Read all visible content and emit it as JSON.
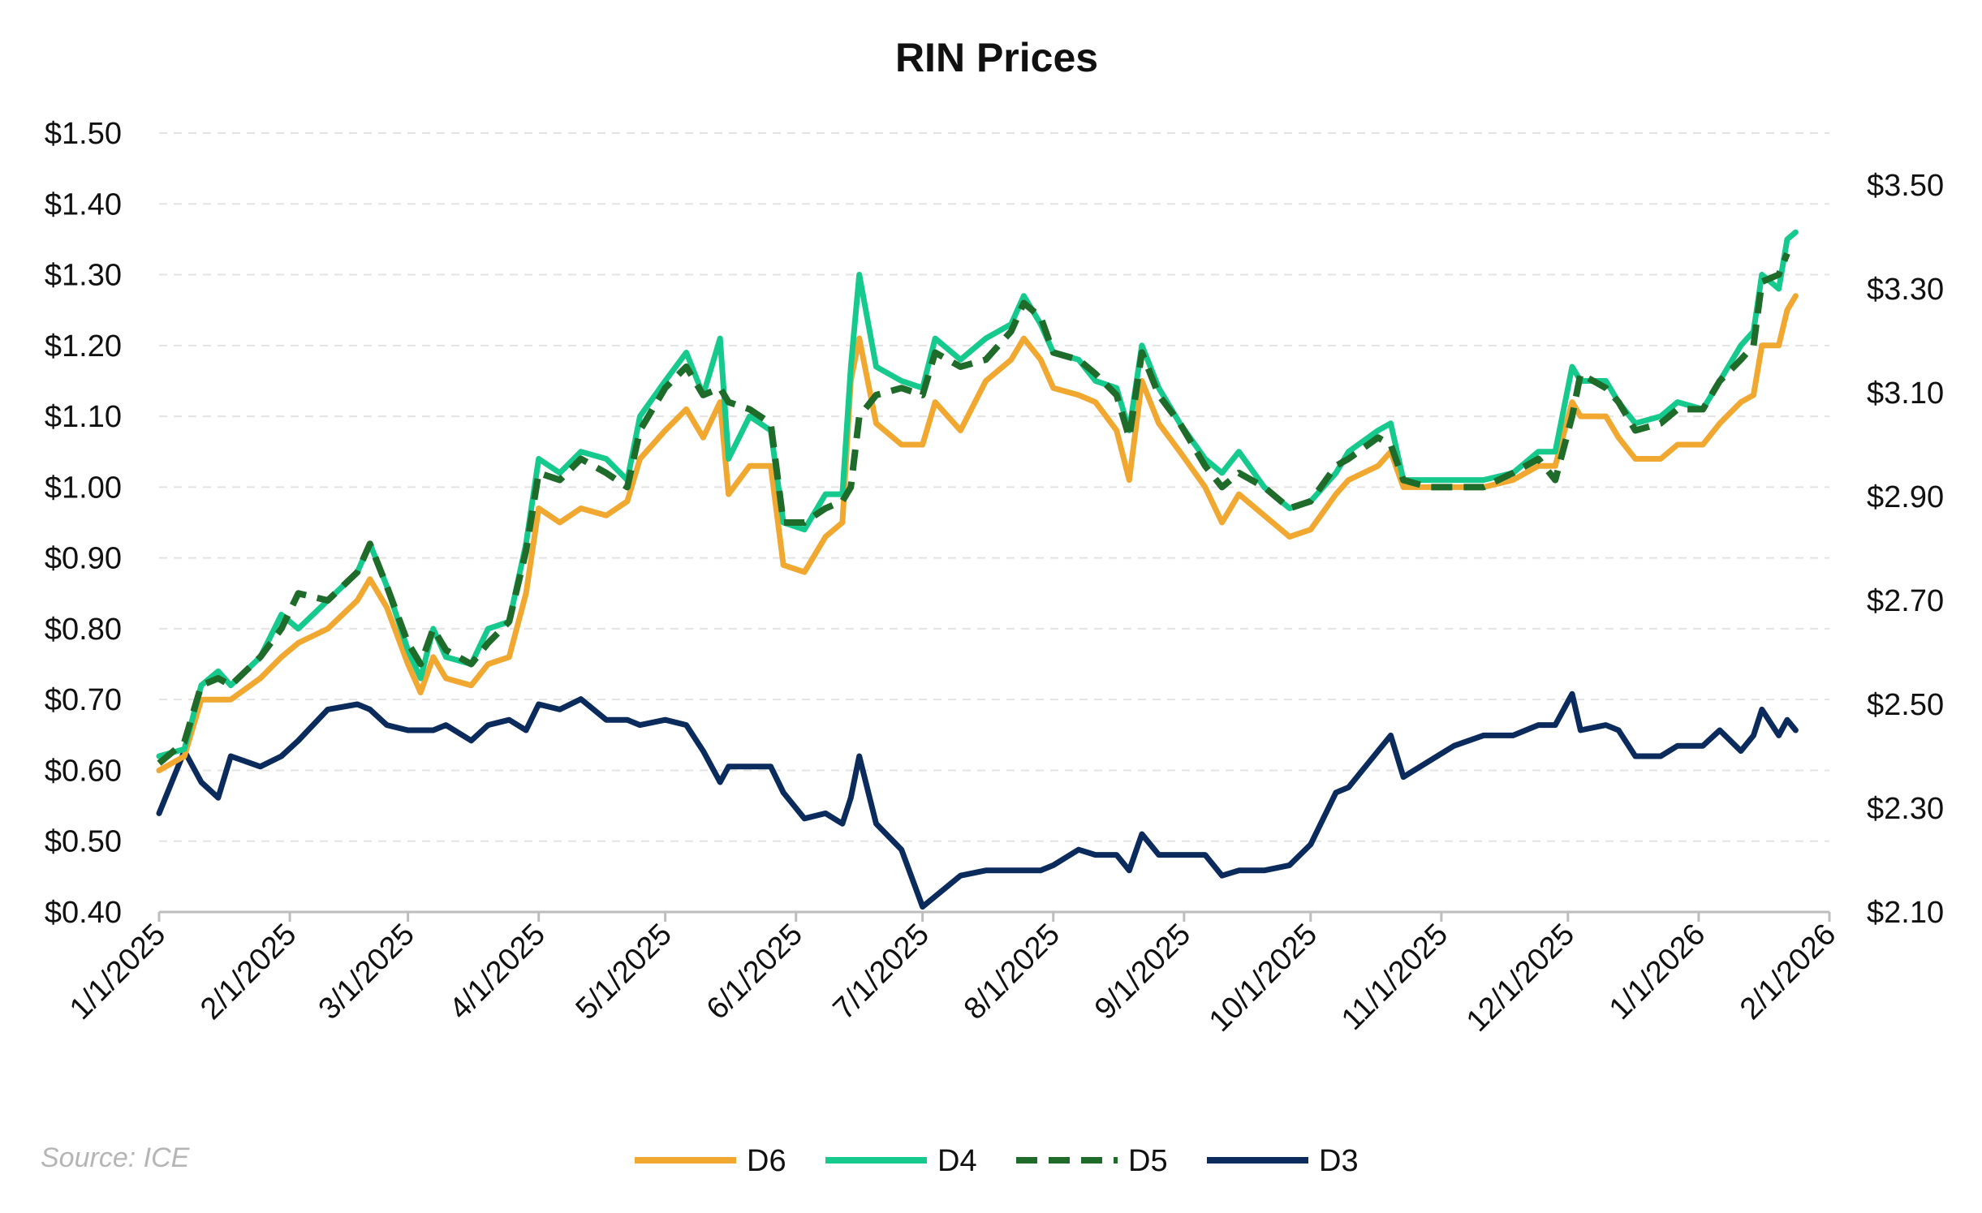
{
  "chart_data": {
    "type": "line",
    "title": "RIN Prices",
    "source": "Source: ICE",
    "grid": "horizontal dashed",
    "legend_placement": "bottom",
    "x_ticks": [
      "1/1/2025",
      "2/1/2025",
      "3/1/2025",
      "4/1/2025",
      "5/1/2025",
      "6/1/2025",
      "7/1/2025",
      "8/1/2025",
      "9/1/2025",
      "10/1/2025",
      "11/1/2025",
      "12/1/2025",
      "1/1/2026",
      "2/1/2026"
    ],
    "xlim": [
      "2025-01-01",
      "2026-02-01"
    ],
    "y_left": {
      "ylim": [
        0.4,
        1.5
      ],
      "ticks": [
        "$0.40",
        "$0.50",
        "$0.60",
        "$0.70",
        "$0.80",
        "$0.90",
        "$1.00",
        "$1.10",
        "$1.20",
        "$1.30",
        "$1.40",
        "$1.50"
      ]
    },
    "y_right": {
      "ylim": [
        2.1,
        3.6
      ],
      "ticks": [
        "$2.10",
        "$2.30",
        "$2.50",
        "$2.70",
        "$2.90",
        "$3.10",
        "$3.30",
        "$3.50"
      ]
    },
    "x": [
      "2025-01-01",
      "2025-01-07",
      "2025-01-11",
      "2025-01-15",
      "2025-01-18",
      "2025-01-25",
      "2025-01-30",
      "2025-02-03",
      "2025-02-10",
      "2025-02-17",
      "2025-02-20",
      "2025-02-24",
      "2025-03-01",
      "2025-03-04",
      "2025-03-07",
      "2025-03-10",
      "2025-03-16",
      "2025-03-20",
      "2025-03-25",
      "2025-03-29",
      "2025-04-01",
      "2025-04-06",
      "2025-04-11",
      "2025-04-17",
      "2025-04-22",
      "2025-04-25",
      "2025-05-01",
      "2025-05-06",
      "2025-05-10",
      "2025-05-14",
      "2025-05-16",
      "2025-05-21",
      "2025-05-26",
      "2025-05-29",
      "2025-06-03",
      "2025-06-08",
      "2025-06-12",
      "2025-06-14",
      "2025-06-16",
      "2025-06-20",
      "2025-06-26",
      "2025-07-01",
      "2025-07-04",
      "2025-07-10",
      "2025-07-16",
      "2025-07-22",
      "2025-07-25",
      "2025-07-29",
      "2025-08-01",
      "2025-08-07",
      "2025-08-11",
      "2025-08-16",
      "2025-08-19",
      "2025-08-22",
      "2025-08-26",
      "2025-08-31",
      "2025-09-06",
      "2025-09-10",
      "2025-09-14",
      "2025-09-20",
      "2025-09-26",
      "2025-10-01",
      "2025-10-07",
      "2025-10-10",
      "2025-10-17",
      "2025-10-20",
      "2025-10-23",
      "2025-10-29",
      "2025-11-04",
      "2025-11-11",
      "2025-11-18",
      "2025-11-24",
      "2025-11-28",
      "2025-12-02",
      "2025-12-04",
      "2025-12-10",
      "2025-12-13",
      "2025-12-17",
      "2025-12-23",
      "2025-12-27",
      "2026-01-02",
      "2026-01-06",
      "2026-01-11",
      "2026-01-14",
      "2026-01-16",
      "2026-01-20",
      "2026-01-22",
      "2026-01-24"
    ],
    "series": [
      {
        "name": "D6",
        "axis": "left",
        "color": "#f0a830",
        "dash": false,
        "values": [
          0.6,
          0.62,
          0.7,
          0.7,
          0.7,
          0.73,
          0.76,
          0.78,
          0.8,
          0.84,
          0.87,
          0.83,
          0.75,
          0.71,
          0.76,
          0.73,
          0.72,
          0.75,
          0.76,
          0.85,
          0.97,
          0.95,
          0.97,
          0.96,
          0.98,
          1.04,
          1.08,
          1.11,
          1.07,
          1.12,
          0.99,
          1.03,
          1.03,
          0.89,
          0.88,
          0.93,
          0.95,
          1.15,
          1.21,
          1.09,
          1.06,
          1.06,
          1.12,
          1.08,
          1.15,
          1.18,
          1.21,
          1.18,
          1.14,
          1.13,
          1.12,
          1.08,
          1.01,
          1.15,
          1.09,
          1.05,
          1.0,
          0.95,
          0.99,
          0.96,
          0.93,
          0.94,
          0.99,
          1.01,
          1.03,
          1.05,
          1.0,
          1.0,
          1.0,
          1.0,
          1.01,
          1.03,
          1.03,
          1.12,
          1.1,
          1.1,
          1.07,
          1.04,
          1.04,
          1.06,
          1.06,
          1.09,
          1.12,
          1.13,
          1.2,
          1.2,
          1.25,
          1.27
        ]
      },
      {
        "name": "D4",
        "axis": "left",
        "color": "#16c98d",
        "dash": false,
        "values": [
          0.62,
          0.63,
          0.72,
          0.74,
          0.72,
          0.76,
          0.82,
          0.8,
          0.84,
          0.88,
          0.92,
          0.86,
          0.77,
          0.73,
          0.8,
          0.76,
          0.75,
          0.8,
          0.81,
          0.92,
          1.04,
          1.02,
          1.05,
          1.04,
          1.01,
          1.1,
          1.15,
          1.19,
          1.13,
          1.21,
          1.04,
          1.1,
          1.08,
          0.95,
          0.94,
          0.99,
          0.99,
          1.17,
          1.3,
          1.17,
          1.15,
          1.14,
          1.21,
          1.18,
          1.21,
          1.23,
          1.27,
          1.23,
          1.19,
          1.18,
          1.15,
          1.14,
          1.08,
          1.2,
          1.14,
          1.09,
          1.04,
          1.02,
          1.05,
          1.0,
          0.97,
          0.98,
          1.02,
          1.05,
          1.08,
          1.09,
          1.01,
          1.01,
          1.01,
          1.01,
          1.02,
          1.05,
          1.05,
          1.17,
          1.15,
          1.15,
          1.12,
          1.09,
          1.1,
          1.12,
          1.11,
          1.15,
          1.2,
          1.22,
          1.3,
          1.28,
          1.35,
          1.36
        ]
      },
      {
        "name": "D5",
        "axis": "left",
        "color": "#1f6b2a",
        "dash": true,
        "values": [
          0.61,
          0.64,
          0.72,
          0.73,
          0.72,
          0.76,
          0.8,
          0.85,
          0.84,
          0.88,
          0.92,
          0.86,
          0.78,
          0.75,
          0.8,
          0.77,
          0.75,
          0.78,
          0.81,
          0.91,
          1.02,
          1.01,
          1.04,
          1.02,
          1.0,
          1.08,
          1.14,
          1.17,
          1.13,
          1.14,
          1.12,
          1.11,
          1.09,
          0.95,
          0.95,
          0.97,
          0.98,
          1.0,
          1.1,
          1.13,
          1.14,
          1.13,
          1.19,
          1.17,
          1.18,
          1.22,
          1.26,
          1.24,
          1.19,
          1.18,
          1.16,
          1.13,
          1.07,
          1.19,
          1.13,
          1.09,
          1.03,
          1.0,
          1.02,
          1.0,
          0.97,
          0.98,
          1.03,
          1.04,
          1.07,
          1.06,
          1.01,
          1.0,
          1.0,
          1.0,
          1.02,
          1.04,
          1.01,
          1.1,
          1.16,
          1.14,
          1.12,
          1.08,
          1.09,
          1.11,
          1.11,
          1.15,
          1.18,
          1.2,
          1.29,
          1.3,
          1.33,
          null
        ]
      },
      {
        "name": "D3",
        "axis": "right",
        "color": "#0b2b5c",
        "dash": false,
        "values": [
          2.29,
          2.41,
          2.35,
          2.32,
          2.4,
          2.38,
          2.4,
          2.43,
          2.49,
          2.5,
          2.49,
          2.46,
          2.45,
          2.45,
          2.45,
          2.46,
          2.43,
          2.46,
          2.47,
          2.45,
          2.5,
          2.49,
          2.51,
          2.47,
          2.47,
          2.46,
          2.47,
          2.46,
          2.41,
          2.35,
          2.38,
          2.38,
          2.38,
          2.33,
          2.28,
          2.29,
          2.27,
          2.32,
          2.4,
          2.27,
          2.22,
          2.11,
          2.13,
          2.17,
          2.18,
          2.18,
          2.18,
          2.18,
          2.19,
          2.22,
          2.21,
          2.21,
          2.18,
          2.25,
          2.21,
          2.21,
          2.21,
          2.17,
          2.18,
          2.18,
          2.19,
          2.23,
          2.33,
          2.34,
          2.41,
          2.44,
          2.36,
          2.39,
          2.42,
          2.44,
          2.44,
          2.46,
          2.46,
          2.52,
          2.45,
          2.46,
          2.45,
          2.4,
          2.4,
          2.42,
          2.42,
          2.45,
          2.41,
          2.44,
          2.49,
          2.44,
          2.47,
          2.45
        ]
      }
    ]
  }
}
